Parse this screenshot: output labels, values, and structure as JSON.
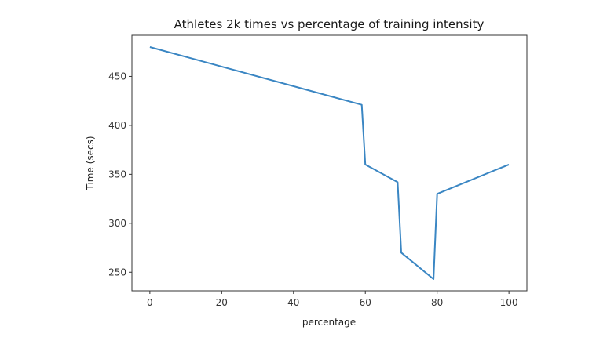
{
  "chart_data": {
    "type": "line",
    "title": "Athletes 2k times vs percentage of training intensity",
    "xlabel": "percentage",
    "ylabel": "Time (secs)",
    "x": [
      0,
      59,
      60,
      69,
      70,
      79,
      80,
      100
    ],
    "series": [
      {
        "name": "Time",
        "color": "#3a86c3",
        "values": [
          480,
          421,
          360,
          342,
          270,
          243,
          330,
          360
        ]
      }
    ],
    "xticks": [
      0,
      20,
      40,
      60,
      80,
      100
    ],
    "xtick_labels": [
      "0",
      "20",
      "40",
      "60",
      "80",
      "100"
    ],
    "yticks": [
      250,
      300,
      350,
      400,
      450
    ],
    "ytick_labels": [
      "250",
      "300",
      "350",
      "400",
      "450"
    ],
    "xlim": [
      -5,
      105
    ],
    "ylim": [
      231,
      492
    ],
    "grid": false,
    "legend": null
  }
}
